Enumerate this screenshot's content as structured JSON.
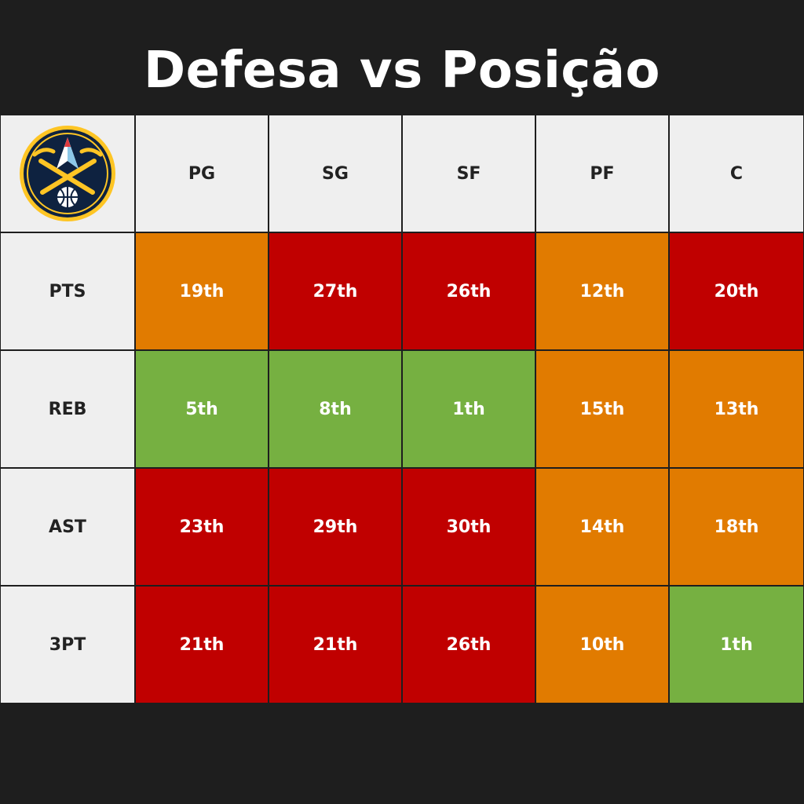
{
  "title": "Defesa vs Posição",
  "logo": {
    "icon": "denver-nuggets-logo"
  },
  "columns": [
    "PG",
    "SG",
    "SF",
    "PF",
    "C"
  ],
  "rows": [
    {
      "label": "PTS",
      "cells": [
        {
          "rank": "19th",
          "level": "orange"
        },
        {
          "rank": "27th",
          "level": "red"
        },
        {
          "rank": "26th",
          "level": "red"
        },
        {
          "rank": "12th",
          "level": "orange"
        },
        {
          "rank": "20th",
          "level": "red"
        }
      ]
    },
    {
      "label": "REB",
      "cells": [
        {
          "rank": "5th",
          "level": "green"
        },
        {
          "rank": "8th",
          "level": "green"
        },
        {
          "rank": "1th",
          "level": "green"
        },
        {
          "rank": "15th",
          "level": "orange"
        },
        {
          "rank": "13th",
          "level": "orange"
        }
      ]
    },
    {
      "label": "AST",
      "cells": [
        {
          "rank": "23th",
          "level": "red"
        },
        {
          "rank": "29th",
          "level": "red"
        },
        {
          "rank": "30th",
          "level": "red"
        },
        {
          "rank": "14th",
          "level": "orange"
        },
        {
          "rank": "18th",
          "level": "orange"
        }
      ]
    },
    {
      "label": "3PT",
      "cells": [
        {
          "rank": "21th",
          "level": "red"
        },
        {
          "rank": "21th",
          "level": "red"
        },
        {
          "rank": "26th",
          "level": "red"
        },
        {
          "rank": "10th",
          "level": "orange"
        },
        {
          "rank": "1th",
          "level": "green"
        }
      ]
    }
  ],
  "colors": {
    "background": "#1e1e1e",
    "header": "#efefef",
    "green": "#76b041",
    "orange": "#e17b00",
    "red": "#c00000"
  }
}
